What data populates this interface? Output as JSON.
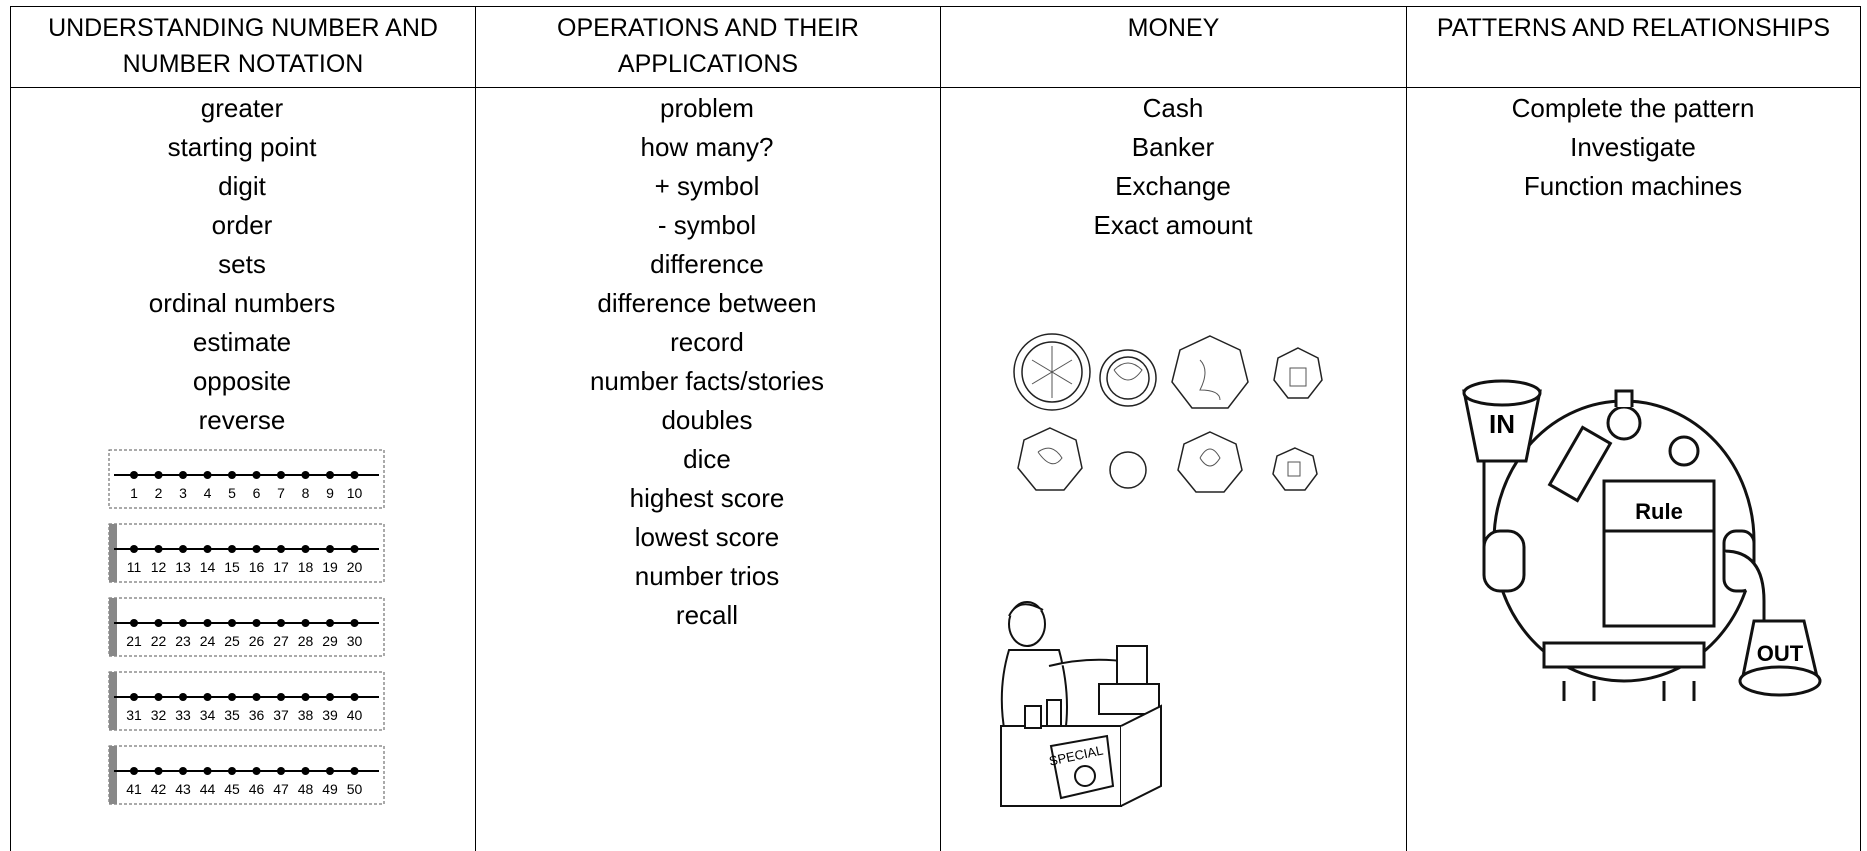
{
  "table": {
    "headers": [
      "UNDERSTANDING NUMBER AND NUMBER NOTATION",
      "OPERATIONS AND THEIR APPLICATIONS",
      "MONEY",
      "PATTERNS AND RELATIONSHIPS"
    ],
    "columns": [
      [
        "greater",
        "starting point",
        "digit",
        "order",
        "sets",
        "ordinal numbers",
        "estimate",
        "opposite",
        "reverse"
      ],
      [
        "problem",
        "how many?",
        "+ symbol",
        "- symbol",
        "difference",
        "difference between",
        "record",
        "number facts/stories",
        "doubles",
        "dice",
        "highest score",
        "lowest score",
        "number trios",
        "recall"
      ],
      [
        "Cash",
        "Banker",
        "Exchange",
        "Exact amount"
      ],
      [
        "Complete the pattern",
        "Investigate",
        "Function machines"
      ]
    ]
  },
  "number_lines": [
    [
      1,
      2,
      3,
      4,
      5,
      6,
      7,
      8,
      9,
      10
    ],
    [
      11,
      12,
      13,
      14,
      15,
      16,
      17,
      18,
      19,
      20
    ],
    [
      21,
      22,
      23,
      24,
      25,
      26,
      27,
      28,
      29,
      30
    ],
    [
      31,
      32,
      33,
      34,
      35,
      36,
      37,
      38,
      39,
      40
    ],
    [
      41,
      42,
      43,
      44,
      45,
      46,
      47,
      48,
      49,
      50
    ]
  ],
  "shop_sign": "SPECIAL",
  "machine": {
    "in": "IN",
    "rule": "Rule",
    "out": "OUT"
  }
}
